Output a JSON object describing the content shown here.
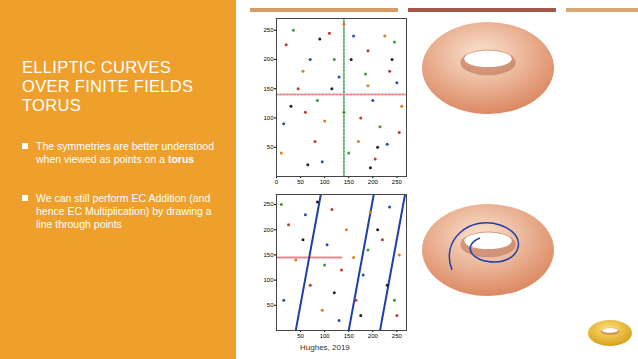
{
  "slide": {
    "title": [
      "ELLIPTIC CURVES",
      "OVER FINITE FIELDS",
      "TORUS"
    ],
    "bullets": [
      {
        "text": "The symmetries are better understood when viewed as points on a",
        "bold": "torus"
      },
      {
        "text": "We can still perform EC Addition (and hence EC Multiplication) by drawing a line through points"
      }
    ],
    "caption": "Hughes, 2019"
  },
  "chart_data": [
    {
      "type": "scatter",
      "xlim": [
        0,
        270
      ],
      "ylim": [
        0,
        270
      ],
      "xticks": [
        0,
        50,
        100,
        150,
        200,
        250
      ],
      "yticks": [
        50,
        100,
        150,
        200,
        250
      ],
      "series": [
        {
          "type": "line",
          "line_style": "dotted",
          "color": "#5fb86a",
          "x": [
            140,
            140
          ],
          "values": [
            0,
            270
          ]
        },
        {
          "type": "line",
          "line_style": "dotted",
          "color": "#e58a8a",
          "x": [
            0,
            270
          ],
          "values": [
            140,
            140
          ]
        },
        {
          "type": "scatter",
          "color": "#c0392b",
          "x": [
            20,
            45,
            80,
            110,
            175,
            205,
            235,
            255,
            60,
            190
          ],
          "values": [
            225,
            150,
            60,
            245,
            100,
            30,
            180,
            75,
            110,
            215
          ]
        },
        {
          "type": "scatter",
          "color": "#2c4fa3",
          "x": [
            15,
            70,
            95,
            130,
            160,
            200,
            230,
            250
          ],
          "values": [
            90,
            200,
            25,
            170,
            240,
            130,
            55,
            160
          ]
        },
        {
          "type": "scatter",
          "color": "#3a9a3a",
          "x": [
            35,
            85,
            120,
            150,
            185,
            215,
            245,
            140
          ],
          "values": [
            250,
            130,
            200,
            40,
            175,
            85,
            230,
            110
          ]
        },
        {
          "type": "scatter",
          "color": "#e07b20",
          "x": [
            10,
            55,
            100,
            140,
            170,
            225,
            260,
            190
          ],
          "values": [
            40,
            180,
            95,
            260,
            60,
            240,
            120,
            155
          ]
        },
        {
          "type": "scatter",
          "color": "#222222",
          "x": [
            30,
            65,
            115,
            155,
            195,
            240,
            90,
            210
          ],
          "values": [
            120,
            20,
            150,
            200,
            15,
            200,
            235,
            50
          ]
        }
      ]
    },
    {
      "type": "scatter",
      "xlim": [
        0,
        270
      ],
      "ylim": [
        0,
        270
      ],
      "xticks": [
        50,
        100,
        150,
        200,
        250
      ],
      "yticks": [
        50,
        100,
        150,
        200,
        250
      ],
      "series": [
        {
          "type": "line",
          "line_style": "solid",
          "color": "#e58a8a",
          "x": [
            0,
            135
          ],
          "values": [
            145,
            145
          ]
        },
        {
          "type": "line",
          "line_style": "solid",
          "color": "#1f3fa8",
          "x": [
            40,
            92
          ],
          "values": [
            0,
            270
          ]
        },
        {
          "type": "line",
          "line_style": "solid",
          "color": "#1f3fa8",
          "x": [
            150,
            202
          ],
          "values": [
            0,
            270
          ]
        },
        {
          "type": "line",
          "line_style": "solid",
          "color": "#1f3fa8",
          "x": [
            215,
            267
          ],
          "values": [
            0,
            270
          ]
        },
        {
          "type": "scatter",
          "color": "#c0392b",
          "x": [
            25,
            70,
            115,
            165,
            220,
            250,
            135
          ],
          "values": [
            210,
            90,
            240,
            60,
            180,
            30,
            120
          ]
        },
        {
          "type": "scatter",
          "color": "#2c4fa3",
          "x": [
            15,
            60,
            105,
            180,
            235,
            130
          ],
          "values": [
            60,
            230,
            170,
            110,
            245,
            20
          ]
        },
        {
          "type": "scatter",
          "color": "#e07b20",
          "x": [
            40,
            95,
            145,
            195,
            255,
            160
          ],
          "values": [
            140,
            40,
            200,
            235,
            150,
            145
          ]
        },
        {
          "type": "scatter",
          "color": "#222222",
          "x": [
            55,
            120,
            175,
            230,
            85,
            210
          ],
          "values": [
            180,
            75,
            30,
            90,
            255,
            200
          ]
        },
        {
          "type": "scatter",
          "color": "#3a9a3a",
          "x": [
            10,
            100,
            190,
            245
          ],
          "values": [
            250,
            130,
            160,
            60
          ]
        }
      ]
    }
  ]
}
